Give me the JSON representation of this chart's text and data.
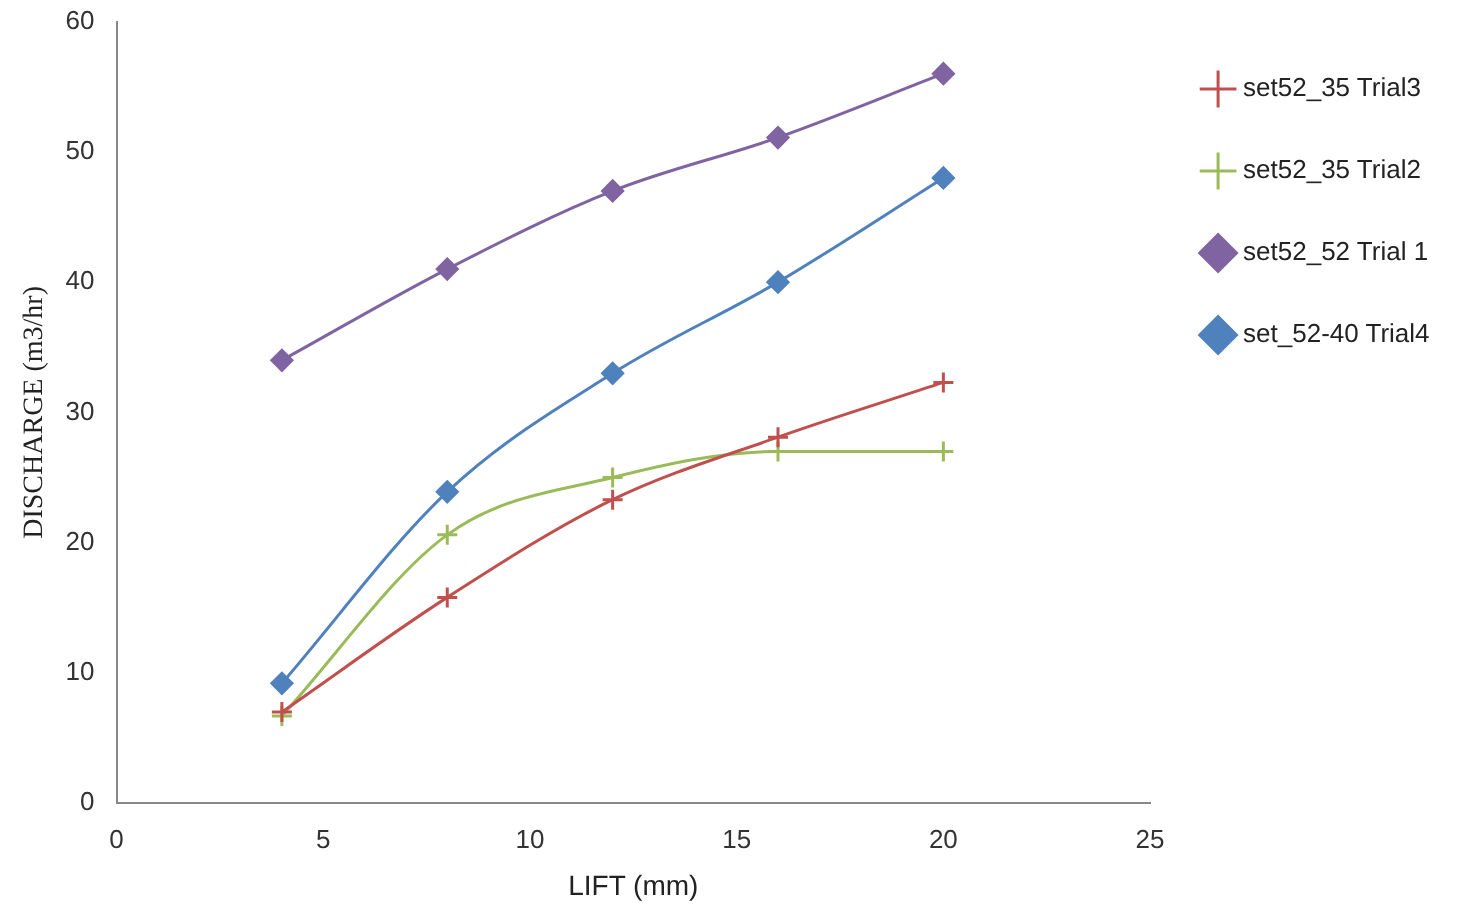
{
  "chart_data": {
    "type": "line",
    "xlabel": "LIFT (mm)",
    "ylabel": "DISCHARGE (m3/hr)",
    "x": [
      4,
      8,
      12,
      16,
      20
    ],
    "series": [
      {
        "name": "set52_35 Trial3",
        "color": "#c0504d",
        "marker": "cross",
        "values": [
          7,
          15.8,
          23.3,
          28.1,
          32.3
        ]
      },
      {
        "name": "set52_35 Trial2",
        "color": "#9bbb59",
        "marker": "cross",
        "values": [
          6.7,
          20.6,
          25,
          27,
          27
        ]
      },
      {
        "name": "set52_52 Trial 1",
        "color": "#8064a2",
        "marker": "diamond",
        "values": [
          34,
          41,
          47,
          51.1,
          56
        ]
      },
      {
        "name": "set_52-40 Trial4",
        "color": "#4f81bd",
        "marker": "diamond",
        "values": [
          9.2,
          23.9,
          33,
          40,
          48
        ]
      }
    ],
    "xlim": [
      0,
      25
    ],
    "xticks": [
      0,
      5,
      10,
      15,
      20,
      25
    ],
    "ylim": [
      0,
      60
    ],
    "yticks": [
      0,
      10,
      20,
      30,
      40,
      50,
      60
    ],
    "grid": false,
    "legend": "right"
  }
}
